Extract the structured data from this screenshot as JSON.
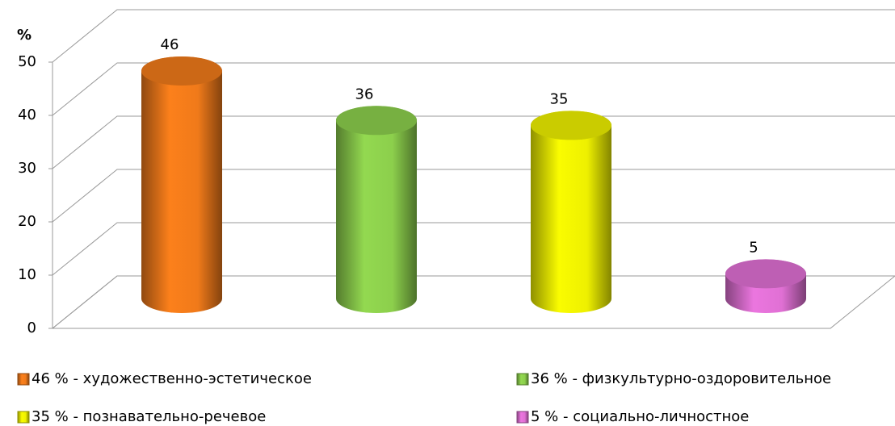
{
  "chart_data": {
    "type": "bar3d",
    "y_label": "%",
    "categories": [
      "46 % - художественно-эстетическое",
      "36 % - физкультурно-оздоровительное",
      "35 % - познавательно-речевое",
      "5 % - социально-личностное"
    ],
    "values": [
      46,
      36,
      35,
      5
    ],
    "colors": [
      "#f07a1a",
      "#8ccf4c",
      "#eef000",
      "#e070d4"
    ],
    "ylim": [
      0,
      50
    ],
    "yticks": [
      0,
      10,
      20,
      30,
      40,
      50
    ],
    "grid": true,
    "legend": "bottom"
  }
}
